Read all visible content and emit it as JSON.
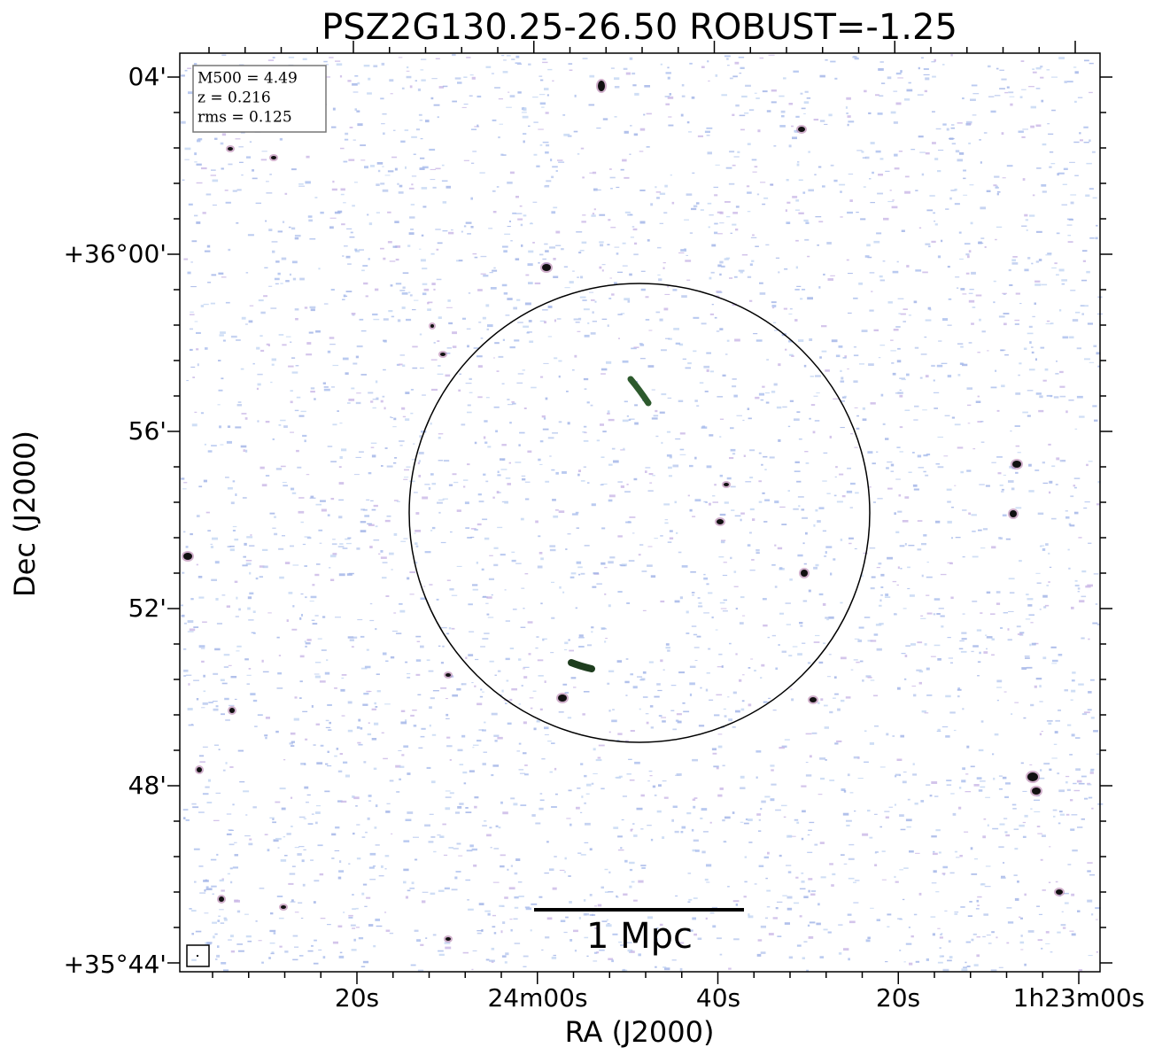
{
  "title": "PSZ2G130.25-26.50 ROBUST=-1.25",
  "info_box": {
    "lines": [
      "M500 = 4.49",
      "z = 0.216",
      "rms = 0.125"
    ]
  },
  "x_axis": {
    "label": "RA (J2000)",
    "tick_labels": [
      "20s",
      "24m00s",
      "40s",
      "20s",
      "1h23m00s"
    ]
  },
  "y_axis": {
    "label": "Dec (J2000)",
    "tick_labels": [
      "04'",
      "+36°00'",
      "56'",
      "52'",
      "48'",
      "+35°44'"
    ]
  },
  "scale_bar": {
    "label": "1 Mpc"
  }
}
